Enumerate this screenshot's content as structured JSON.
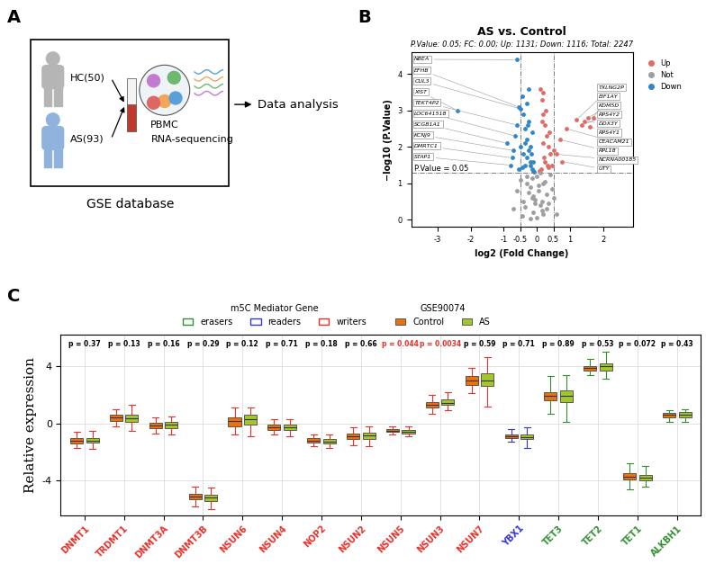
{
  "panel_labels": [
    "A",
    "B",
    "C"
  ],
  "diagram": {
    "groups": [
      {
        "label": "HC(50)",
        "color": "#b5b5b5"
      },
      {
        "label": "AS(93)",
        "color": "#8fb3dc"
      }
    ],
    "sample": "PBMC",
    "assay": "RNA-sequencing",
    "source": "GSE database",
    "next_step": "Data analysis"
  },
  "chart_data": [
    {
      "type": "scatter",
      "title": "AS vs. Control",
      "subtitle": "P.Value: 0.05; FC: 0.00; Up: 1131; Down: 1116; Total: 2247",
      "x_label": "log2 (Fold Change)",
      "y_label": "−log10 (P.Value)",
      "xlim": [
        -3.8,
        2.9
      ],
      "xticks": [
        -3,
        -2,
        -1,
        -0.5,
        0,
        0.5,
        1,
        2
      ],
      "ylim": [
        -0.2,
        4.6
      ],
      "yticks": [
        0,
        1,
        2,
        3,
        4
      ],
      "legend": "right",
      "series": [
        {
          "name": "Up",
          "color": "#e06a66",
          "x": [
            1.2,
            1.7,
            1.55,
            1.35,
            1.45,
            1.6,
            0.9,
            0.7,
            0.6,
            0.75,
            0.1,
            0.15,
            0.2,
            0.25,
            0.3,
            0.35,
            0.4,
            0.45,
            0.12,
            0.18,
            0.22,
            0.28,
            0.32,
            0.38,
            0.5,
            0.08,
            0.15,
            0.25,
            0.35,
            0.2
          ],
          "y": [
            2.75,
            2.8,
            2.8,
            2.6,
            2.7,
            2.55,
            2.5,
            2.2,
            1.8,
            1.6,
            3.6,
            3.3,
            2.9,
            2.6,
            2.3,
            2.0,
            1.8,
            1.5,
            1.4,
            2.1,
            1.7,
            3.0,
            1.5,
            2.4,
            1.9,
            1.35,
            2.7,
            1.6,
            1.45,
            3.5
          ]
        },
        {
          "name": "Not",
          "color": "#9e9e9e",
          "x": [
            -0.7,
            -0.6,
            -0.5,
            -0.4,
            -0.3,
            -0.2,
            -0.1,
            0,
            0.1,
            0.2,
            0.3,
            0.4,
            0.5,
            0.6,
            -0.35,
            -0.25,
            -0.15,
            -0.05,
            0.05,
            0.15,
            0.25,
            0.35,
            -0.45,
            0.45,
            -0.2,
            -0.1,
            0.0,
            0.1,
            0.2,
            -0.3,
            0.3,
            -0.05,
            0.05,
            -0.15,
            0.15
          ],
          "y": [
            0.3,
            0.8,
            1.1,
            0.5,
            1.2,
            0.9,
            0.2,
            0.05,
            0.4,
            1.0,
            0.7,
            1.25,
            0.6,
            0.15,
            0.35,
            0.75,
            1.15,
            0.55,
            0.95,
            0.25,
            1.05,
            0.45,
            0.1,
            0.85,
            0.02,
            0.65,
            1.2,
            1.28,
            0.15,
            1.0,
            0.3,
            0.45,
            0.8,
            0.6,
            0.5
          ]
        },
        {
          "name": "Down",
          "color": "#2f86c9",
          "x": [
            -0.6,
            -0.55,
            -0.5,
            -2.4,
            -0.6,
            -0.65,
            -0.9,
            -0.7,
            -0.75,
            -0.8,
            -0.45,
            -0.4,
            -0.35,
            -0.3,
            -0.25,
            -0.2,
            -0.15,
            -0.1,
            -0.3,
            -0.25,
            -0.2,
            -0.4,
            -0.35,
            -0.15,
            -0.5,
            -0.45,
            -0.3,
            -0.2,
            -0.12,
            -0.08,
            -0.25,
            -0.35,
            -0.55,
            -0.18,
            -0.28
          ],
          "y": [
            4.4,
            3.1,
            3.05,
            3.0,
            2.6,
            2.3,
            2.1,
            1.9,
            1.7,
            1.5,
            3.4,
            2.9,
            2.5,
            2.2,
            1.9,
            1.6,
            1.4,
            1.35,
            3.2,
            2.7,
            2.0,
            1.8,
            1.5,
            2.4,
            2.0,
            1.45,
            1.7,
            1.5,
            1.6,
            1.32,
            3.6,
            2.1,
            1.4,
            1.8,
            2.6
          ]
        }
      ],
      "reference_lines": {
        "y": [
          {
            "value": 1.301,
            "label": "P.Value = 0.05"
          }
        ],
        "x": [
          -0.5,
          0.5
        ]
      },
      "point_labels": [
        {
          "text": "NBEA",
          "x": -0.6,
          "y": 4.4
        },
        {
          "text": "EFHB",
          "x": -0.55,
          "y": 3.1
        },
        {
          "text": "CUL3",
          "x": -0.5,
          "y": 3.05
        },
        {
          "text": "XIST",
          "x": -2.4,
          "y": 3.0
        },
        {
          "text": "TEKT4P2",
          "x": -0.6,
          "y": 2.6
        },
        {
          "text": "LOC641518",
          "x": -0.65,
          "y": 2.3
        },
        {
          "text": "SCGB1A1",
          "x": -0.9,
          "y": 2.1
        },
        {
          "text": "KCNJ9",
          "x": -0.7,
          "y": 1.9
        },
        {
          "text": "DMRTC1",
          "x": -0.75,
          "y": 1.7
        },
        {
          "text": "STAP1",
          "x": -0.8,
          "y": 1.5
        },
        {
          "text": "TXLNG2P",
          "x": 1.2,
          "y": 2.75
        },
        {
          "text": "EIF1AY",
          "x": 1.7,
          "y": 2.8
        },
        {
          "text": "KDM5D",
          "x": 1.55,
          "y": 2.8
        },
        {
          "text": "RPS4Y2",
          "x": 1.35,
          "y": 2.6
        },
        {
          "text": "DDX3Y",
          "x": 1.45,
          "y": 2.7
        },
        {
          "text": "RPS4Y1",
          "x": 1.6,
          "y": 2.55
        },
        {
          "text": "CEACAM21",
          "x": 0.9,
          "y": 2.5
        },
        {
          "text": "RPL18",
          "x": 0.7,
          "y": 2.2
        },
        {
          "text": "NCRNA00185",
          "x": 0.6,
          "y": 1.8
        },
        {
          "text": "UTY",
          "x": 0.75,
          "y": 1.6
        }
      ]
    },
    {
      "type": "box",
      "y_label": "Relative expression",
      "ylim": [
        -6.4,
        6.2
      ],
      "yticks": [
        -4,
        0,
        4
      ],
      "grid": true,
      "legend": "top",
      "legend_titles": [
        "m5C Mediator Gene",
        "GSE90074"
      ],
      "classes": [
        {
          "name": "erasers",
          "color": "#2f8f2f"
        },
        {
          "name": "readers",
          "color": "#3535d8"
        },
        {
          "name": "writers",
          "color": "#e8312a"
        }
      ],
      "categories": [
        "DNMT1",
        "TRDMT1",
        "DNMT3A",
        "DNMT3B",
        "NSUN6",
        "NSUN4",
        "NOP2",
        "NSUN2",
        "NSUN5",
        "NSUN3",
        "NSUN7",
        "YBX1",
        "TET3",
        "TET2",
        "TET1",
        "ALKBH1"
      ],
      "category_classes": [
        "writers",
        "writers",
        "writers",
        "writers",
        "writers",
        "writers",
        "writers",
        "writers",
        "writers",
        "writers",
        "writers",
        "readers",
        "erasers",
        "erasers",
        "erasers",
        "erasers"
      ],
      "series": [
        {
          "name": "Control",
          "color": "#e8720c",
          "stats": [
            {
              "whislo": -1.7,
              "q1": -1.4,
              "med": -1.2,
              "q3": -1.0,
              "whishi": -0.6
            },
            {
              "whislo": -0.2,
              "q1": 0.2,
              "med": 0.4,
              "q3": 0.6,
              "whishi": 1.0
            },
            {
              "whislo": -0.7,
              "q1": -0.35,
              "med": -0.15,
              "q3": 0.05,
              "whishi": 0.4
            },
            {
              "whislo": -5.8,
              "q1": -5.3,
              "med": -5.1,
              "q3": -4.9,
              "whishi": -4.4
            },
            {
              "whislo": -0.8,
              "q1": -0.2,
              "med": 0.15,
              "q3": 0.4,
              "whishi": 1.1
            },
            {
              "whislo": -0.8,
              "q1": -0.45,
              "med": -0.3,
              "q3": -0.1,
              "whishi": 0.3
            },
            {
              "whislo": -1.6,
              "q1": -1.35,
              "med": -1.2,
              "q3": -1.05,
              "whishi": -0.8
            },
            {
              "whislo": -1.5,
              "q1": -1.1,
              "med": -0.9,
              "q3": -0.7,
              "whishi": -0.3
            },
            {
              "whislo": -0.8,
              "q1": -0.6,
              "med": -0.5,
              "q3": -0.4,
              "whishi": -0.2
            },
            {
              "whislo": 0.7,
              "q1": 1.1,
              "med": 1.3,
              "q3": 1.5,
              "whishi": 2.0
            },
            {
              "whislo": 2.1,
              "q1": 2.7,
              "med": 3.0,
              "q3": 3.3,
              "whishi": 3.9
            },
            {
              "whislo": -1.3,
              "q1": -1.0,
              "med": -0.9,
              "q3": -0.8,
              "whishi": -0.4
            },
            {
              "whislo": 0.7,
              "q1": 1.6,
              "med": 1.9,
              "q3": 2.2,
              "whishi": 3.3
            },
            {
              "whislo": 3.4,
              "q1": 3.7,
              "med": 3.9,
              "q3": 4.0,
              "whishi": 4.5
            },
            {
              "whislo": -4.6,
              "q1": -3.9,
              "med": -3.7,
              "q3": -3.5,
              "whishi": -2.8
            },
            {
              "whislo": 0.1,
              "q1": 0.45,
              "med": 0.6,
              "q3": 0.75,
              "whishi": 0.9
            }
          ]
        },
        {
          "name": "AS",
          "color": "#a3c62c",
          "stats": [
            {
              "whislo": -1.8,
              "q1": -1.35,
              "med": -1.2,
              "q3": -1.0,
              "whishi": -0.5
            },
            {
              "whislo": -0.5,
              "q1": 0.1,
              "med": 0.35,
              "q3": 0.6,
              "whishi": 1.3
            },
            {
              "whislo": -0.8,
              "q1": -0.35,
              "med": -0.1,
              "q3": 0.1,
              "whishi": 0.5
            },
            {
              "whislo": -6.0,
              "q1": -5.4,
              "med": -5.2,
              "q3": -5.0,
              "whishi": -4.5
            },
            {
              "whislo": -0.9,
              "q1": -0.1,
              "med": 0.3,
              "q3": 0.6,
              "whishi": 1.1
            },
            {
              "whislo": -0.9,
              "q1": -0.45,
              "med": -0.25,
              "q3": -0.05,
              "whishi": 0.3
            },
            {
              "whislo": -1.7,
              "q1": -1.4,
              "med": -1.25,
              "q3": -1.1,
              "whishi": -0.8
            },
            {
              "whislo": -1.6,
              "q1": -1.1,
              "med": -0.85,
              "q3": -0.65,
              "whishi": -0.2
            },
            {
              "whislo": -0.9,
              "q1": -0.7,
              "med": -0.6,
              "q3": -0.45,
              "whishi": -0.2
            },
            {
              "whislo": 0.9,
              "q1": 1.3,
              "med": 1.45,
              "q3": 1.65,
              "whishi": 2.2
            },
            {
              "whislo": 1.2,
              "q1": 2.6,
              "med": 3.0,
              "q3": 3.5,
              "whishi": 4.6
            },
            {
              "whislo": -1.7,
              "q1": -1.1,
              "med": -0.95,
              "q3": -0.75,
              "whishi": -0.3
            },
            {
              "whislo": 0.1,
              "q1": 1.5,
              "med": 1.9,
              "q3": 2.3,
              "whishi": 3.4
            },
            {
              "whislo": 3.1,
              "q1": 3.7,
              "med": 4.0,
              "q3": 4.2,
              "whishi": 5.0
            },
            {
              "whislo": -4.4,
              "q1": -4.0,
              "med": -3.8,
              "q3": -3.6,
              "whishi": -3.0
            },
            {
              "whislo": 0.1,
              "q1": 0.45,
              "med": 0.6,
              "q3": 0.8,
              "whishi": 1.0
            }
          ]
        }
      ],
      "p_labels": [
        {
          "text": "p = 0.37",
          "color": "#000000"
        },
        {
          "text": "p = 0.13",
          "color": "#000000"
        },
        {
          "text": "p = 0.16",
          "color": "#000000"
        },
        {
          "text": "p = 0.29",
          "color": "#000000"
        },
        {
          "text": "p = 0.12",
          "color": "#000000"
        },
        {
          "text": "p = 0.71",
          "color": "#000000"
        },
        {
          "text": "p = 0.18",
          "color": "#000000"
        },
        {
          "text": "p = 0.66",
          "color": "#000000"
        },
        {
          "text": "p = 0.044",
          "color": "#e8312a"
        },
        {
          "text": "p = 0.0034",
          "color": "#e8312a"
        },
        {
          "text": "p = 0.59",
          "color": "#000000"
        },
        {
          "text": "p = 0.71",
          "color": "#000000"
        },
        {
          "text": "p = 0.89",
          "color": "#000000"
        },
        {
          "text": "p = 0.53",
          "color": "#000000"
        },
        {
          "text": "p = 0.072",
          "color": "#000000"
        },
        {
          "text": "p = 0.43",
          "color": "#000000"
        }
      ]
    }
  ]
}
